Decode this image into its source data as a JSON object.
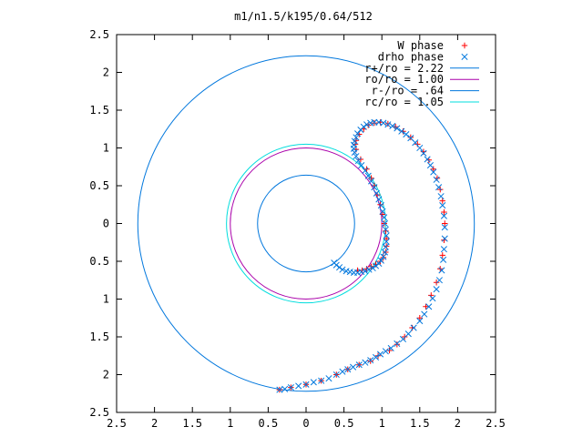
{
  "chart_data": {
    "type": "scatter",
    "title": "m1/n1.5/k195/0.64/512",
    "xlabel": "",
    "ylabel": "",
    "xlim": [
      -2.5,
      2.5
    ],
    "ylim": [
      -2.5,
      2.5
    ],
    "x_tick_values": [
      -2.5,
      -2,
      -1.5,
      -1,
      -0.5,
      0,
      0.5,
      1,
      1.5,
      2,
      2.5
    ],
    "x_tick_labels": [
      "2.5",
      "2",
      "1.5",
      "1",
      "0.5",
      "0",
      "0.5",
      "1",
      "1.5",
      "2",
      "2.5"
    ],
    "y_tick_values": [
      2.5,
      2,
      1.5,
      1,
      0.5,
      0,
      -0.5,
      -1,
      -1.5,
      -2,
      -2.5
    ],
    "y_tick_labels": [
      "2.5",
      "2",
      "1.5",
      "1",
      "0.5",
      "0",
      "0.5",
      "1",
      "1.5",
      "2",
      "2.5"
    ],
    "grid": false,
    "legend_position": "top-right",
    "series": [
      {
        "name": "W phase",
        "kind": "points",
        "marker": "plus",
        "color": "#ff0000",
        "x": [
          -0.35,
          -0.2,
          0.0,
          0.2,
          0.4,
          0.55,
          0.7,
          0.85,
          0.95,
          1.1,
          1.2,
          1.3,
          1.4,
          1.5,
          1.58,
          1.65,
          1.72,
          1.77,
          1.8,
          1.82,
          1.83,
          1.82,
          1.8,
          1.77,
          1.73,
          1.68,
          1.62,
          1.55,
          1.47,
          1.38,
          1.28,
          1.18,
          1.08,
          0.98,
          0.9,
          0.82,
          0.76,
          0.7,
          0.66,
          0.65,
          0.66,
          0.72,
          0.8,
          0.86,
          0.9,
          0.94,
          0.98,
          1.01,
          1.03,
          1.05,
          1.06,
          1.06,
          1.05,
          1.02,
          0.98,
          0.92,
          0.86,
          0.8,
          0.74,
          0.68
        ],
        "y": [
          -2.2,
          -2.17,
          -2.13,
          -2.08,
          -2.0,
          -1.93,
          -1.87,
          -1.82,
          -1.75,
          -1.68,
          -1.6,
          -1.5,
          -1.38,
          -1.25,
          -1.1,
          -0.95,
          -0.78,
          -0.6,
          -0.42,
          -0.22,
          0.0,
          0.15,
          0.3,
          0.45,
          0.6,
          0.72,
          0.84,
          0.95,
          1.05,
          1.14,
          1.22,
          1.28,
          1.32,
          1.34,
          1.33,
          1.3,
          1.25,
          1.18,
          1.1,
          1.05,
          0.98,
          0.85,
          0.72,
          0.6,
          0.5,
          0.38,
          0.25,
          0.12,
          0.0,
          -0.1,
          -0.2,
          -0.3,
          -0.38,
          -0.45,
          -0.5,
          -0.54,
          -0.57,
          -0.6,
          -0.62,
          -0.62
        ]
      },
      {
        "name": "drho phase",
        "kind": "points",
        "marker": "cross",
        "color": "#0077dd",
        "x": [
          -0.35,
          -0.28,
          -0.2,
          -0.1,
          0.0,
          0.1,
          0.2,
          0.3,
          0.4,
          0.48,
          0.55,
          0.62,
          0.7,
          0.78,
          0.85,
          0.92,
          0.98,
          1.05,
          1.12,
          1.2,
          1.28,
          1.35,
          1.42,
          1.5,
          1.56,
          1.62,
          1.67,
          1.72,
          1.76,
          1.79,
          1.81,
          1.82,
          1.83,
          1.83,
          1.82,
          1.8,
          1.78,
          1.75,
          1.72,
          1.68,
          1.64,
          1.6,
          1.55,
          1.5,
          1.44,
          1.38,
          1.32,
          1.26,
          1.2,
          1.14,
          1.08,
          1.02,
          0.96,
          0.9,
          0.85,
          0.8,
          0.76,
          0.72,
          0.68,
          0.66,
          0.64,
          0.63,
          0.63,
          0.64,
          0.66,
          0.69,
          0.73,
          0.78,
          0.82,
          0.86,
          0.9,
          0.93,
          0.96,
          0.99,
          1.01,
          1.03,
          1.04,
          1.05,
          1.06,
          1.06,
          1.05,
          1.04,
          1.02,
          0.99,
          0.96,
          0.92,
          0.88,
          0.83,
          0.78,
          0.73,
          0.68,
          0.63,
          0.58,
          0.53,
          0.48,
          0.44,
          0.4,
          0.37
        ],
        "y": [
          -2.2,
          -2.19,
          -2.17,
          -2.15,
          -2.13,
          -2.1,
          -2.08,
          -2.05,
          -2.0,
          -1.96,
          -1.93,
          -1.9,
          -1.87,
          -1.84,
          -1.81,
          -1.77,
          -1.73,
          -1.69,
          -1.65,
          -1.59,
          -1.53,
          -1.46,
          -1.38,
          -1.29,
          -1.2,
          -1.1,
          -0.99,
          -0.87,
          -0.75,
          -0.62,
          -0.48,
          -0.34,
          -0.2,
          -0.05,
          0.1,
          0.24,
          0.36,
          0.48,
          0.58,
          0.68,
          0.77,
          0.85,
          0.93,
          1.0,
          1.07,
          1.13,
          1.18,
          1.22,
          1.26,
          1.29,
          1.31,
          1.33,
          1.34,
          1.34,
          1.33,
          1.31,
          1.28,
          1.24,
          1.19,
          1.14,
          1.09,
          1.04,
          0.99,
          0.94,
          0.89,
          0.83,
          0.77,
          0.7,
          0.63,
          0.56,
          0.48,
          0.4,
          0.32,
          0.24,
          0.16,
          0.08,
          0.0,
          -0.08,
          -0.16,
          -0.24,
          -0.31,
          -0.38,
          -0.44,
          -0.49,
          -0.53,
          -0.56,
          -0.59,
          -0.61,
          -0.63,
          -0.64,
          -0.65,
          -0.65,
          -0.64,
          -0.63,
          -0.61,
          -0.58,
          -0.55,
          -0.52
        ]
      },
      {
        "name": "r+/ro = 2.22",
        "kind": "circle",
        "r": 2.22,
        "color": "#0077dd"
      },
      {
        "name": "ro/ro = 1.00",
        "kind": "circle",
        "r": 1.0,
        "color": "#aa00aa"
      },
      {
        "name": "r-/ro = .64",
        "kind": "circle",
        "r": 0.64,
        "color": "#0077dd"
      },
      {
        "name": "rc/ro = 1.05",
        "kind": "circle",
        "r": 1.05,
        "color": "#00dddd"
      }
    ]
  }
}
